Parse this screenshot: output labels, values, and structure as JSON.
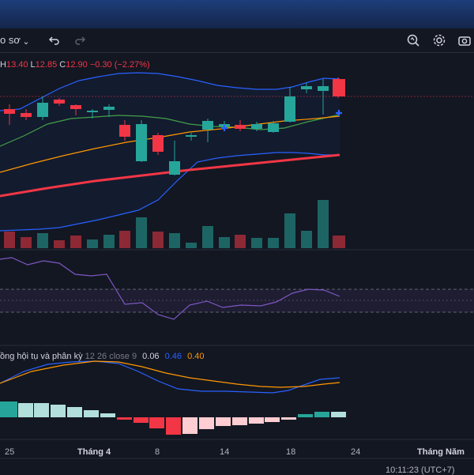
{
  "toolbar": {
    "profile_label": "o sơ",
    "dropdown_icon": "chevron-down-icon",
    "undo_icon": "undo-icon",
    "redo_icon": "redo-icon",
    "search_icon": "quick-search-icon",
    "settings_icon": "gear-icon",
    "camera_icon": "camera-icon"
  },
  "ohlc": {
    "h_label": "H",
    "h_value": "13.40",
    "l_label": "L",
    "l_value": "12.85",
    "c_label": "C",
    "c_value": "12.90",
    "change": "−0.30 (−2.27%)"
  },
  "macd_legend": {
    "name": "ồng hội tụ và phân kỳ",
    "params": "12 26 close 9",
    "v1": "0.06",
    "v2": "0.46",
    "v3": "0.40"
  },
  "x_axis": [
    "25",
    "Tháng 4",
    "8",
    "14",
    "18",
    "24",
    "Tháng Năm"
  ],
  "footer": {
    "time": "10:11:23 (UTC+7)"
  },
  "colors": {
    "up": "#26a69a",
    "down": "#f23645",
    "ema": "#f23645",
    "macd": "#2962ff",
    "signal": "#ff9800",
    "rsi": "#7e57c2"
  },
  "chart_data": {
    "type": "candlestick",
    "last_candle": {
      "high": 13.4,
      "low": 12.85,
      "close": 12.9,
      "change": -0.3,
      "change_pct": -2.27
    }
  }
}
